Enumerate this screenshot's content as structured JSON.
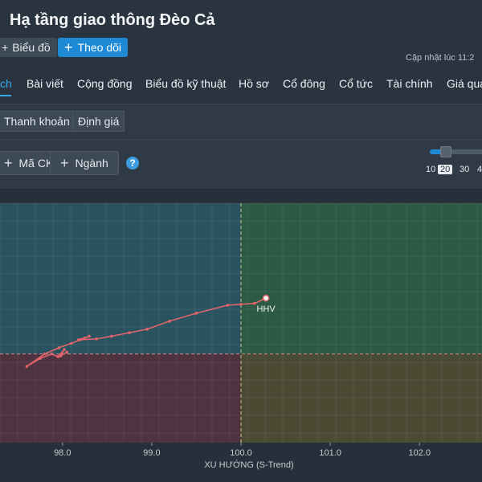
{
  "header": {
    "title": "Hạ tầng giao thông Đèo Cả",
    "chart_button": "Biểu đồ",
    "follow_button": "Theo dõi",
    "updated_label": "Cập nhật lúc  11:2"
  },
  "tabs": [
    {
      "label": "ch",
      "active": true
    },
    {
      "label": "Bài viết"
    },
    {
      "label": "Cộng đồng"
    },
    {
      "label": "Biểu đồ kỹ thuật"
    },
    {
      "label": "Hồ sơ"
    },
    {
      "label": "Cổ đông"
    },
    {
      "label": "Cổ tức"
    },
    {
      "label": "Tài chính"
    },
    {
      "label": "Giá quá"
    }
  ],
  "subtabs": [
    "Thanh khoản",
    "Định giá"
  ],
  "controls": {
    "ticker_button": "Mã CK",
    "industry_button": "Ngành",
    "slider_ticks": [
      "10",
      "20",
      "30",
      "4"
    ],
    "slider_selected": "20"
  },
  "colors": {
    "accent": "#1e8ad6",
    "quadrant_top_left": "#2a5360",
    "quadrant_top_right": "#2c5a45",
    "quadrant_bottom_left": "#4e3340",
    "quadrant_bottom_right": "#4b4b34",
    "trail": "#e0646a"
  },
  "chart_data": {
    "type": "scatter",
    "xlabel": "XU HƯỚNG (S-Trend)",
    "xlim": [
      97.3,
      102.7
    ],
    "ylim": [
      -1.0,
      1.7
    ],
    "x_ticks": [
      98.0,
      99.0,
      100.0,
      101.0,
      102.0
    ],
    "x_tick_labels": [
      "98.0",
      "99.0",
      "100.0",
      "101.0",
      "102.0"
    ],
    "center": [
      100.0,
      0.0
    ],
    "series": [
      {
        "name": "HHV",
        "points": [
          {
            "x": 98.05,
            "y": 0.02
          },
          {
            "x": 97.98,
            "y": -0.02
          },
          {
            "x": 98.02,
            "y": 0.05
          },
          {
            "x": 97.95,
            "y": -0.03
          },
          {
            "x": 97.88,
            "y": 0.0
          },
          {
            "x": 97.75,
            "y": -0.05
          },
          {
            "x": 97.6,
            "y": -0.14
          },
          {
            "x": 97.8,
            "y": 0.0
          },
          {
            "x": 97.96,
            "y": 0.07
          },
          {
            "x": 98.1,
            "y": 0.12
          },
          {
            "x": 98.2,
            "y": 0.16
          },
          {
            "x": 98.25,
            "y": 0.18
          },
          {
            "x": 98.3,
            "y": 0.2
          },
          {
            "x": 98.18,
            "y": 0.16
          },
          {
            "x": 98.38,
            "y": 0.17
          },
          {
            "x": 98.55,
            "y": 0.2
          },
          {
            "x": 98.75,
            "y": 0.24
          },
          {
            "x": 98.95,
            "y": 0.28
          },
          {
            "x": 99.2,
            "y": 0.37
          },
          {
            "x": 99.5,
            "y": 0.46
          },
          {
            "x": 99.85,
            "y": 0.55
          },
          {
            "x": 100.0,
            "y": 0.56
          },
          {
            "x": 100.15,
            "y": 0.57
          },
          {
            "x": 100.28,
            "y": 0.63
          }
        ]
      }
    ]
  }
}
